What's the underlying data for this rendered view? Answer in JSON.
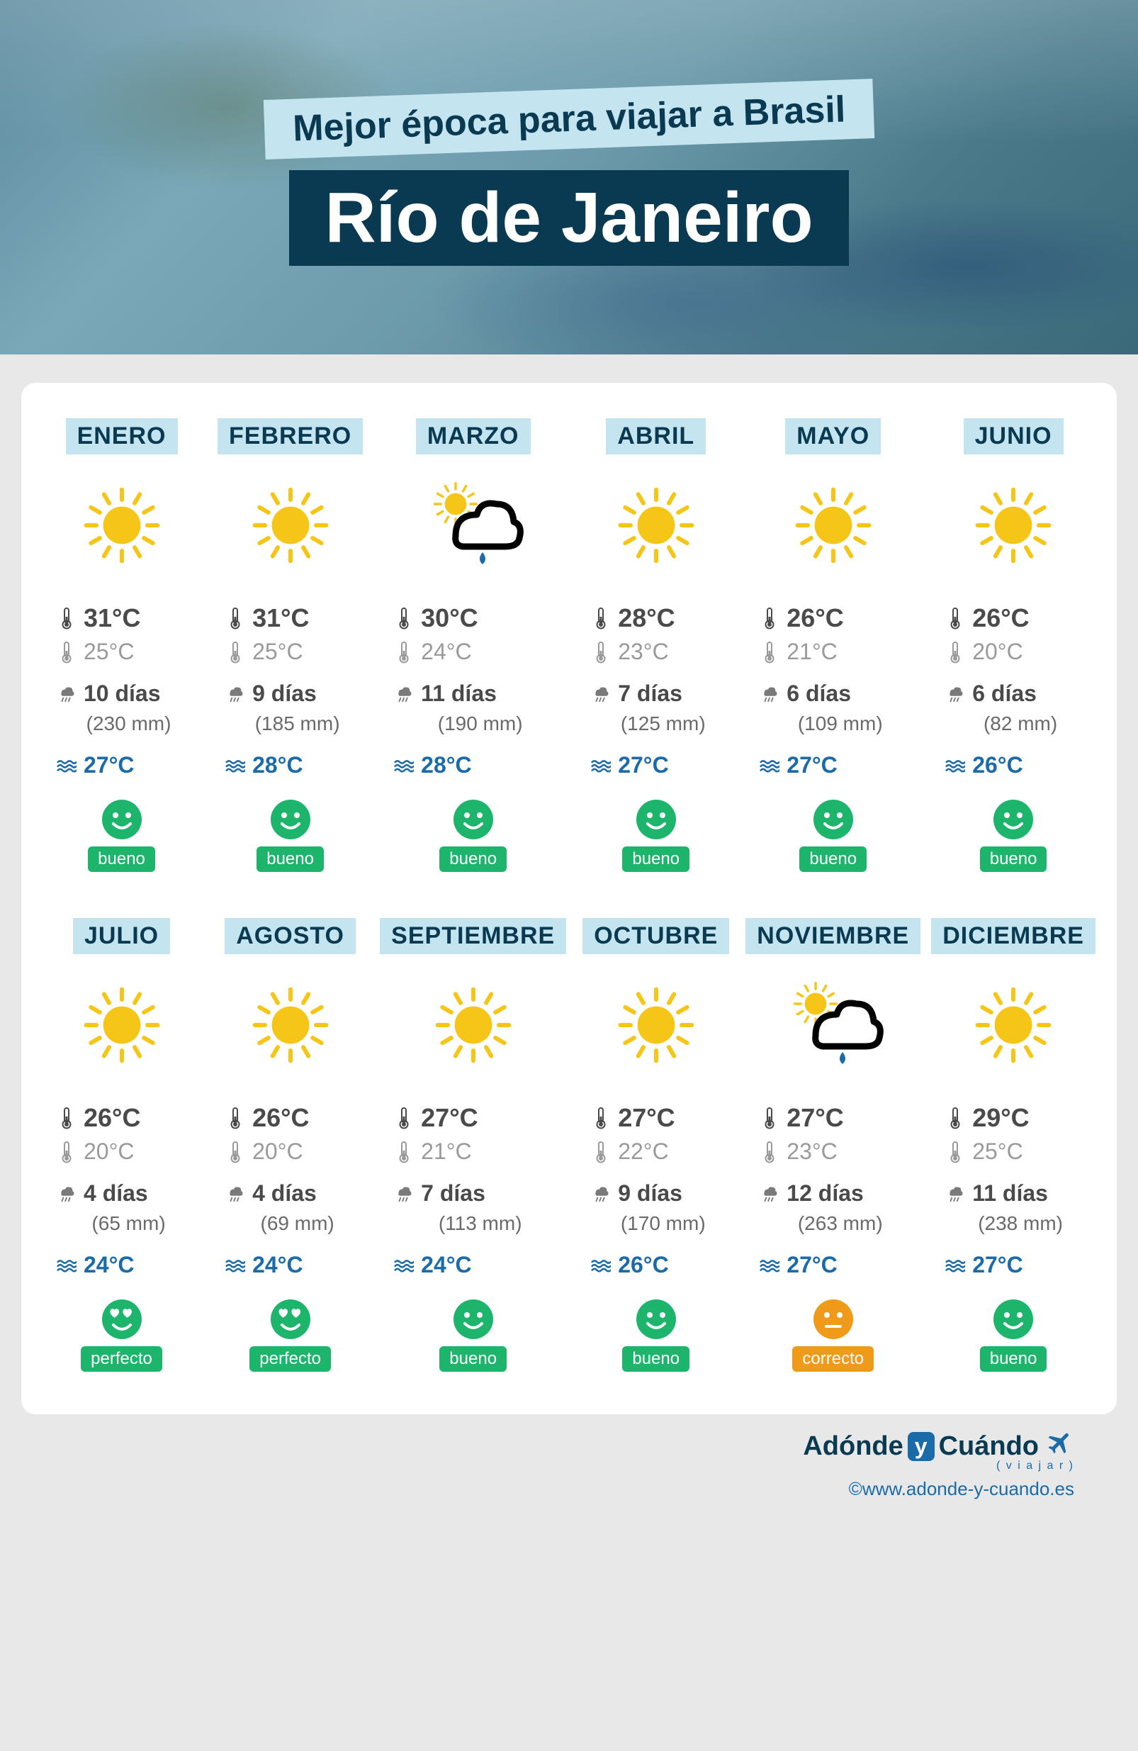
{
  "header": {
    "subtitle": "Mejor época para viajar a Brasil",
    "title": "Río de Janeiro"
  },
  "colors": {
    "accent_light": "#c4e5f0",
    "accent_dark": "#0a3a52",
    "sea_blue": "#1a6ba8",
    "rating_good": "#1cb56b",
    "rating_perfect": "#1cb56b",
    "rating_ok": "#f09a1a",
    "sun_yellow": "#f5c518",
    "temp_high": "#4a4a4a",
    "temp_low": "#9a9a9a",
    "rain_gray": "#7a7a7a"
  },
  "ratings": {
    "bueno": {
      "label": "bueno",
      "color": "#1cb56b",
      "face": "smile"
    },
    "perfecto": {
      "label": "perfecto",
      "color": "#1cb56b",
      "face": "heart"
    },
    "correcto": {
      "label": "correcto",
      "color": "#f09a1a",
      "face": "neutral"
    }
  },
  "months": [
    {
      "name": "ENERO",
      "icon": "sun",
      "high": "31°C",
      "low": "25°C",
      "rain_days": "10 días",
      "rain_mm": "(230 mm)",
      "sea": "27°C",
      "rating": "bueno"
    },
    {
      "name": "FEBRERO",
      "icon": "sun",
      "high": "31°C",
      "low": "25°C",
      "rain_days": "9 días",
      "rain_mm": "(185 mm)",
      "sea": "28°C",
      "rating": "bueno"
    },
    {
      "name": "MARZO",
      "icon": "suncloud",
      "high": "30°C",
      "low": "24°C",
      "rain_days": "11 días",
      "rain_mm": "(190 mm)",
      "sea": "28°C",
      "rating": "bueno"
    },
    {
      "name": "ABRIL",
      "icon": "sun",
      "high": "28°C",
      "low": "23°C",
      "rain_days": "7 días",
      "rain_mm": "(125 mm)",
      "sea": "27°C",
      "rating": "bueno"
    },
    {
      "name": "MAYO",
      "icon": "sun",
      "high": "26°C",
      "low": "21°C",
      "rain_days": "6 días",
      "rain_mm": "(109 mm)",
      "sea": "27°C",
      "rating": "bueno"
    },
    {
      "name": "JUNIO",
      "icon": "sun",
      "high": "26°C",
      "low": "20°C",
      "rain_days": "6 días",
      "rain_mm": "(82 mm)",
      "sea": "26°C",
      "rating": "bueno"
    },
    {
      "name": "JULIO",
      "icon": "sun",
      "high": "26°C",
      "low": "20°C",
      "rain_days": "4 días",
      "rain_mm": "(65 mm)",
      "sea": "24°C",
      "rating": "perfecto"
    },
    {
      "name": "AGOSTO",
      "icon": "sun",
      "high": "26°C",
      "low": "20°C",
      "rain_days": "4 días",
      "rain_mm": "(69 mm)",
      "sea": "24°C",
      "rating": "perfecto"
    },
    {
      "name": "SEPTIEMBRE",
      "icon": "sun",
      "high": "27°C",
      "low": "21°C",
      "rain_days": "7 días",
      "rain_mm": "(113 mm)",
      "sea": "24°C",
      "rating": "bueno"
    },
    {
      "name": "OCTUBRE",
      "icon": "sun",
      "high": "27°C",
      "low": "22°C",
      "rain_days": "9 días",
      "rain_mm": "(170 mm)",
      "sea": "26°C",
      "rating": "bueno"
    },
    {
      "name": "NOVIEMBRE",
      "icon": "suncloud",
      "high": "27°C",
      "low": "23°C",
      "rain_days": "12 días",
      "rain_mm": "(263 mm)",
      "sea": "27°C",
      "rating": "correcto"
    },
    {
      "name": "DICIEMBRE",
      "icon": "sun",
      "high": "29°C",
      "low": "25°C",
      "rain_days": "11 días",
      "rain_mm": "(238 mm)",
      "sea": "27°C",
      "rating": "bueno"
    }
  ],
  "footer": {
    "brand_a": "Adónde",
    "brand_y": "y",
    "brand_c": "Cuándo",
    "brand_sub": "( v i a j a r )",
    "copyright": "©www.adonde-y-cuando.es"
  }
}
